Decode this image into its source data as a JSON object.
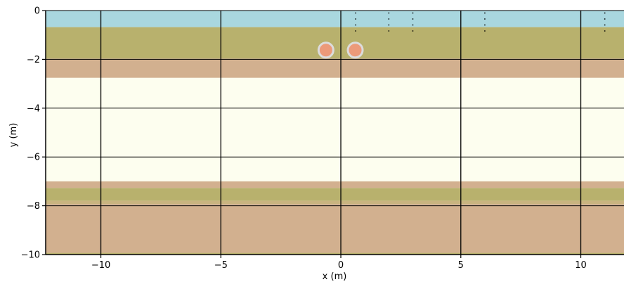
{
  "chart_data": {
    "type": "cross-section",
    "xlabel": "x (m)",
    "ylabel": "y (m)",
    "xlim": [
      -12.3,
      11.8
    ],
    "ylim": [
      -10,
      0
    ],
    "xticks": [
      -10,
      -5,
      0,
      5,
      10
    ],
    "yticks": [
      0,
      -2,
      -4,
      -6,
      -8,
      -10
    ],
    "xtick_labels": [
      "−10",
      "−5",
      "0",
      "5",
      "10"
    ],
    "ytick_labels": [
      "0",
      "−2",
      "−4",
      "−6",
      "−8",
      "−10"
    ],
    "grid": true,
    "layers": [
      {
        "top": 0,
        "bottom": -0.68,
        "color": "#a9d7df"
      },
      {
        "top": -0.68,
        "bottom": -1.97,
        "color": "#b8b16d"
      },
      {
        "top": -1.97,
        "bottom": -2.76,
        "color": "#d2b08f"
      },
      {
        "top": -2.76,
        "bottom": -7.0,
        "color": "#fdfeef"
      },
      {
        "top": -7.0,
        "bottom": -7.27,
        "color": "#d2b08f"
      },
      {
        "top": -7.27,
        "bottom": -7.8,
        "color": "#b8b16d"
      },
      {
        "top": -7.8,
        "bottom": -7.93,
        "color": "#c9b480"
      },
      {
        "top": -7.93,
        "bottom": -9.93,
        "color": "#d2b08f"
      },
      {
        "top": -9.93,
        "bottom": -10,
        "color": "#b8b16d"
      }
    ],
    "points": [
      {
        "x": -0.62,
        "y": -1.62,
        "color": "#ec9a7a",
        "edge": "#dcdcdc"
      },
      {
        "x": 0.6,
        "y": -1.62,
        "color": "#ec9a7a",
        "edge": "#dcdcdc"
      }
    ],
    "markers": [
      {
        "x": 0.62,
        "y_top": -0.08,
        "y_bottom": -0.98
      },
      {
        "x": 2.0,
        "y_top": -0.08,
        "y_bottom": -0.98
      },
      {
        "x": 3.0,
        "y_top": -0.08,
        "y_bottom": -0.98
      },
      {
        "x": 6.0,
        "y_top": -0.08,
        "y_bottom": -0.98
      },
      {
        "x": 11.0,
        "y_top": -0.08,
        "y_bottom": -0.98
      }
    ]
  }
}
